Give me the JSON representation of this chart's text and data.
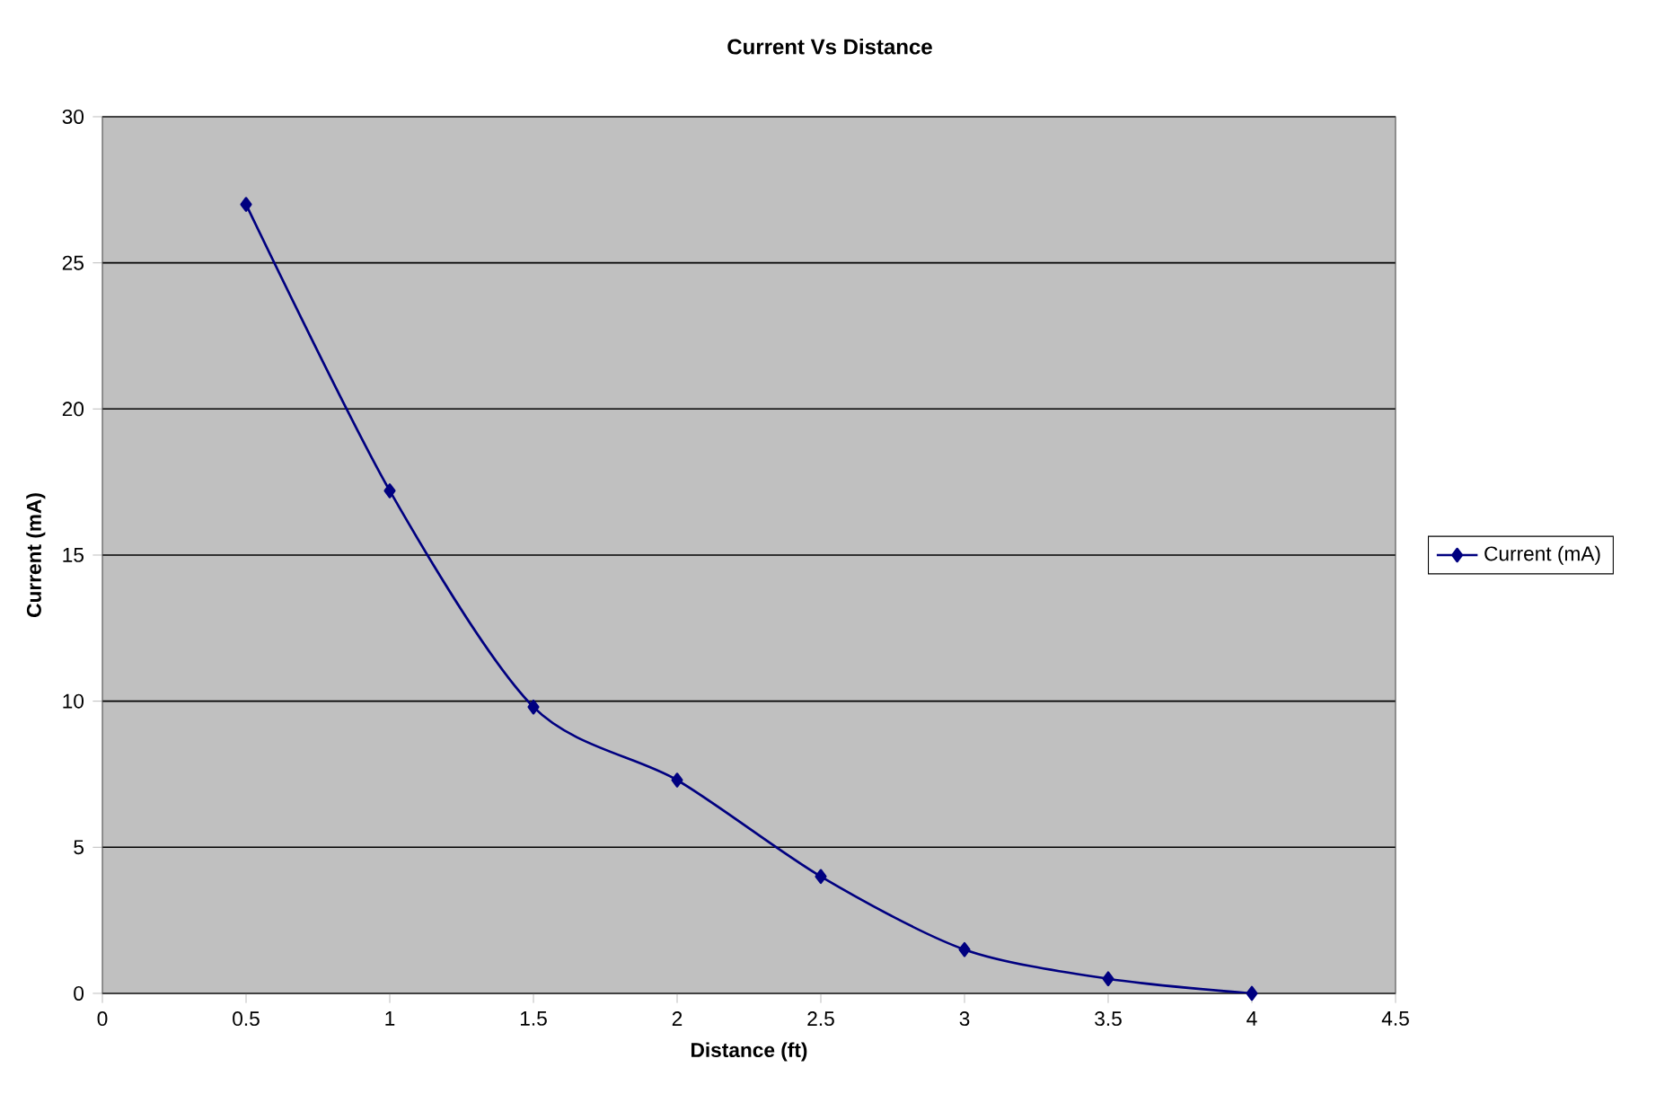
{
  "chart_data": {
    "type": "line",
    "title": "Current Vs Distance",
    "xlabel": "Distance (ft)",
    "ylabel": "Current (mA)",
    "x": [
      0.5,
      1,
      1.5,
      2,
      2.5,
      3,
      3.5,
      4
    ],
    "series": [
      {
        "name": "Current (mA)",
        "color": "#000080",
        "values": [
          27,
          17.2,
          9.8,
          7.3,
          4.0,
          1.5,
          0.5,
          0
        ]
      }
    ],
    "xlim": [
      0,
      4.5
    ],
    "xticks": [
      0,
      0.5,
      1,
      1.5,
      2,
      2.5,
      3,
      3.5,
      4,
      4.5
    ],
    "ylim": [
      0,
      30
    ],
    "yticks": [
      0,
      5,
      10,
      15,
      20,
      25,
      30
    ],
    "grid": "y",
    "legend": "right",
    "marker": "diamond",
    "line_style": "solid"
  }
}
